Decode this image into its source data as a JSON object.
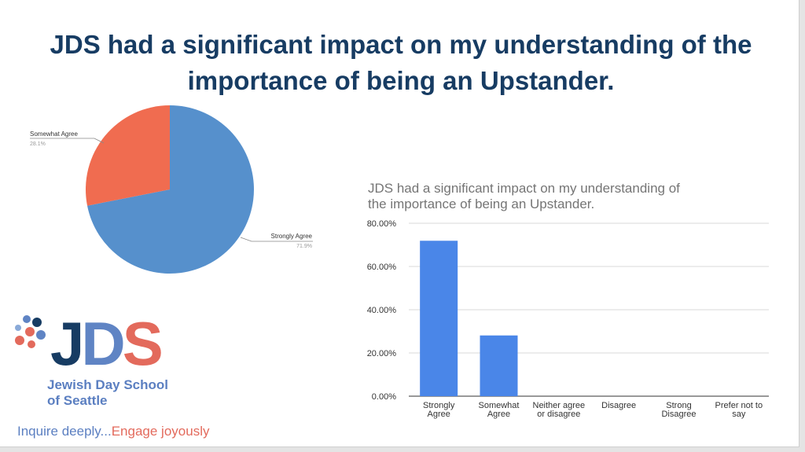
{
  "slide": {
    "title": "JDS had a significant impact on my understanding of the importance of being an Upstander."
  },
  "logo": {
    "letters": [
      "J",
      "D",
      "S"
    ],
    "name_line1": "Jewish Day School",
    "name_line2": "of Seattle",
    "tagline_part1": "Inquire deeply...",
    "tagline_part2": "Engage joyously",
    "colors": {
      "navy": "#173c63",
      "blue": "#5f84c4",
      "coral": "#e36a5c"
    }
  },
  "chart_data": [
    {
      "type": "pie",
      "title": "",
      "slices": [
        {
          "label": "Strongly Agree",
          "value": 71.9,
          "display": "71.9%",
          "color": "#5690cc"
        },
        {
          "label": "Somewhat Agree",
          "value": 28.1,
          "display": "28.1%",
          "color": "#f06c50"
        }
      ]
    },
    {
      "type": "bar",
      "title": "JDS had a significant impact on my understanding of the importance of being an Upstander.",
      "categories": [
        [
          "Strongly",
          "Agree"
        ],
        [
          "Somewhat",
          "Agree"
        ],
        [
          "Neither agree",
          "or disagree"
        ],
        [
          "Disagree"
        ],
        [
          "Strong",
          "Disagree"
        ],
        [
          "Prefer not to",
          "say"
        ]
      ],
      "values": [
        71.9,
        28.1,
        0,
        0,
        0,
        0
      ],
      "ylim": [
        0,
        80
      ],
      "yticks": [
        "0.00%",
        "20.00%",
        "40.00%",
        "60.00%",
        "80.00%"
      ],
      "grid": true,
      "bar_color": "#4a86e8"
    }
  ]
}
